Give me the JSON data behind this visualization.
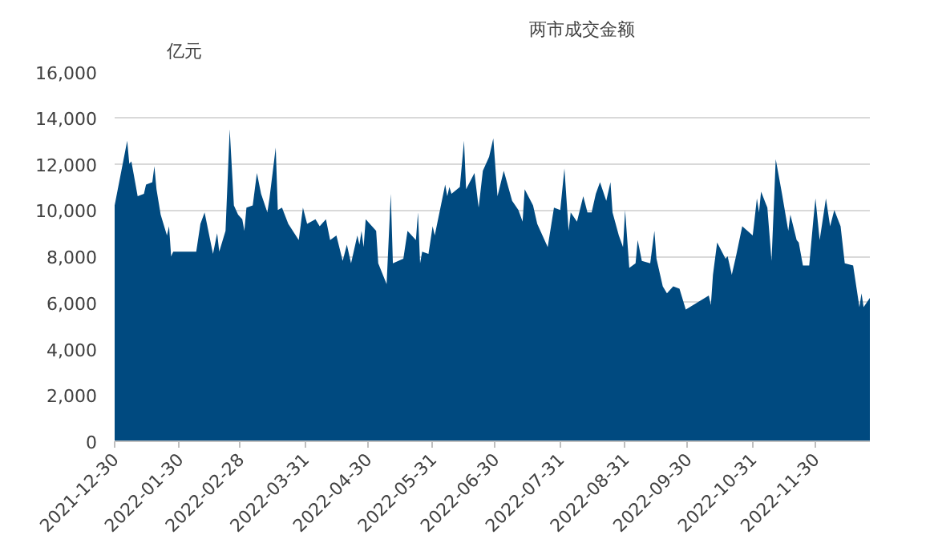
{
  "chart_data": {
    "type": "area",
    "ylabel": "亿元",
    "legend": "top",
    "grid": "y",
    "xlim": [
      "2021-12-30",
      "2022-12-26"
    ],
    "xticks": [
      "2021-12-30",
      "2022-01-30",
      "2022-02-28",
      "2022-03-31",
      "2022-04-30",
      "2022-05-31",
      "2022-06-30",
      "2022-07-31",
      "2022-08-31",
      "2022-09-30",
      "2022-10-31",
      "2022-11-30"
    ],
    "ylim": [
      0,
      16000
    ],
    "yticks": [
      0,
      {
        "value": 2000,
        "label": "2,000"
      },
      {
        "value": 4000,
        "label": "4,000"
      },
      {
        "value": 6000,
        "label": "6,000"
      },
      {
        "value": 8000,
        "label": "8,000"
      },
      {
        "value": 10000,
        "label": "10,000"
      },
      {
        "value": 12000,
        "label": "12,000"
      },
      {
        "value": 14000,
        "label": "14,000"
      },
      {
        "value": 16000,
        "label": "16,000"
      }
    ],
    "x": [
      "2021-12-30",
      "2022-01-05",
      "2022-01-06",
      "2022-01-07",
      "2022-01-10",
      "2022-01-13",
      "2022-01-14",
      "2022-01-17",
      "2022-01-18",
      "2022-01-19",
      "2022-01-21",
      "2022-01-24",
      "2022-01-25",
      "2022-01-26",
      "2022-01-27",
      "2022-02-07",
      "2022-02-09",
      "2022-02-11",
      "2022-02-15",
      "2022-02-17",
      "2022-02-18",
      "2022-02-21",
      "2022-02-23",
      "2022-02-25",
      "2022-02-27",
      "2022-03-01",
      "2022-03-02",
      "2022-03-03",
      "2022-03-06",
      "2022-03-08",
      "2022-03-10",
      "2022-03-13",
      "2022-03-14",
      "2022-03-17",
      "2022-03-18",
      "2022-03-20",
      "2022-03-23",
      "2022-03-28",
      "2022-03-30",
      "2022-04-01",
      "2022-04-05",
      "2022-04-07",
      "2022-04-10",
      "2022-04-12",
      "2022-04-15",
      "2022-04-18",
      "2022-04-20",
      "2022-04-22",
      "2022-04-25",
      "2022-04-26",
      "2022-04-27",
      "2022-04-28",
      "2022-04-29",
      "2022-05-04",
      "2022-05-05",
      "2022-05-09",
      "2022-05-11",
      "2022-05-12",
      "2022-05-17",
      "2022-05-19",
      "2022-05-23",
      "2022-05-24",
      "2022-05-25",
      "2022-05-26",
      "2022-05-29",
      "2022-05-31",
      "2022-06-01",
      "2022-06-06",
      "2022-06-07",
      "2022-06-08",
      "2022-06-09",
      "2022-06-13",
      "2022-06-15",
      "2022-06-16",
      "2022-06-20",
      "2022-06-22",
      "2022-06-24",
      "2022-06-27",
      "2022-06-29",
      "2022-07-01",
      "2022-07-04",
      "2022-07-08",
      "2022-07-11",
      "2022-07-13",
      "2022-07-14",
      "2022-07-18",
      "2022-07-20",
      "2022-07-25",
      "2022-07-28",
      "2022-07-31",
      "2022-08-02",
      "2022-08-04",
      "2022-08-05",
      "2022-08-08",
      "2022-08-11",
      "2022-08-13",
      "2022-08-15",
      "2022-08-17",
      "2022-08-19",
      "2022-08-22",
      "2022-08-24",
      "2022-08-25",
      "2022-08-28",
      "2022-08-30",
      "2022-08-31",
      "2022-09-02",
      "2022-09-05",
      "2022-09-06",
      "2022-09-08",
      "2022-09-12",
      "2022-09-14",
      "2022-09-15",
      "2022-09-18",
      "2022-09-20",
      "2022-09-23",
      "2022-09-26",
      "2022-09-29",
      "2022-10-10",
      "2022-10-11",
      "2022-10-12",
      "2022-10-14",
      "2022-10-18",
      "2022-10-19",
      "2022-10-21",
      "2022-10-23",
      "2022-10-26",
      "2022-10-31",
      "2022-11-02",
      "2022-11-03",
      "2022-11-04",
      "2022-11-07",
      "2022-11-09",
      "2022-11-11",
      "2022-11-14",
      "2022-11-17",
      "2022-11-18",
      "2022-11-21",
      "2022-11-22",
      "2022-11-24",
      "2022-11-27",
      "2022-11-29",
      "2022-11-30",
      "2022-12-02",
      "2022-12-05",
      "2022-12-07",
      "2022-12-09",
      "2022-12-12",
      "2022-12-14",
      "2022-12-18",
      "2022-12-21",
      "2022-12-22",
      "2022-12-23",
      "2022-12-26"
    ],
    "series": [
      {
        "name": "两市成交金额",
        "color": "#004a80",
        "values": [
          10200,
          13000,
          12000,
          12100,
          10600,
          10700,
          11100,
          11200,
          11900,
          10900,
          9800,
          8900,
          9300,
          8000,
          8200,
          8200,
          9400,
          9900,
          8100,
          9000,
          8200,
          9100,
          13500,
          10200,
          9800,
          9600,
          9100,
          10100,
          10200,
          11600,
          10700,
          9900,
          10500,
          12700,
          10000,
          10100,
          9400,
          8700,
          10100,
          9400,
          9600,
          9300,
          9600,
          8700,
          8900,
          7800,
          8500,
          7700,
          8900,
          8500,
          9100,
          8400,
          9600,
          9100,
          7700,
          6800,
          10700,
          7700,
          7900,
          9100,
          8700,
          9900,
          7700,
          8200,
          8100,
          9300,
          8900,
          11100,
          10600,
          11000,
          10700,
          11000,
          13000,
          10900,
          11600,
          10100,
          11700,
          12300,
          13100,
          10600,
          11700,
          10400,
          10000,
          9500,
          10900,
          10200,
          9400,
          8400,
          10100,
          10000,
          11800,
          9100,
          9900,
          9500,
          10600,
          9900,
          9900,
          10700,
          11200,
          10400,
          11200,
          9900,
          8900,
          8400,
          10000,
          7500,
          7700,
          8700,
          7800,
          7700,
          9100,
          7900,
          6700,
          6400,
          6700,
          6600,
          5700,
          6300,
          5900,
          7200,
          8600,
          7900,
          8000,
          7200,
          8000,
          9300,
          8900,
          10500,
          9900,
          10800,
          10100,
          7800,
          12200,
          10700,
          9100,
          9800,
          8700,
          8600,
          7600,
          7600,
          9600,
          10500,
          8700,
          10500,
          9300,
          10000,
          9300,
          7700,
          7600,
          5800,
          6400,
          5800,
          6200
        ]
      }
    ]
  }
}
